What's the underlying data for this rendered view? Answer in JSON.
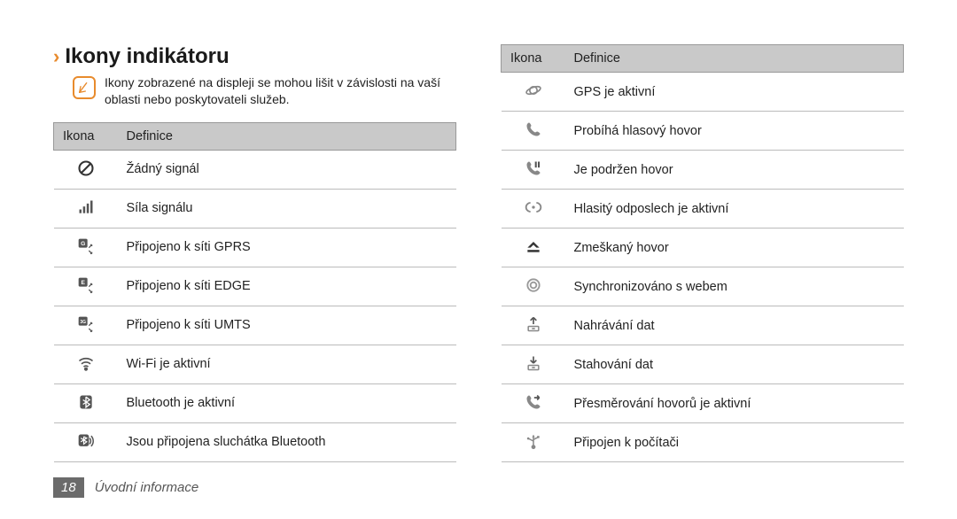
{
  "heading": "Ikony indikátoru",
  "noteText": "Ikony zobrazené na displeji se mohou lišit v závislosti na vaší oblasti nebo poskytovateli služeb.",
  "tableHeaders": {
    "icon": "Ikona",
    "def": "Definice"
  },
  "leftRows": [
    {
      "icon": "no-signal-icon",
      "label": "Žádný signál"
    },
    {
      "icon": "signal-icon",
      "label": "Síla signálu"
    },
    {
      "icon": "gprs-icon",
      "label": "Připojeno k síti GPRS"
    },
    {
      "icon": "edge-icon",
      "label": "Připojeno k síti EDGE"
    },
    {
      "icon": "umts-icon",
      "label": "Připojeno k síti UMTS"
    },
    {
      "icon": "wifi-icon",
      "label": "Wi-Fi je aktivní"
    },
    {
      "icon": "bluetooth-icon",
      "label": "Bluetooth je aktivní"
    },
    {
      "icon": "bt-headset-icon",
      "label": "Jsou připojena sluchátka Bluetooth"
    }
  ],
  "rightRows": [
    {
      "icon": "gps-icon",
      "label": "GPS je aktivní"
    },
    {
      "icon": "call-icon",
      "label": "Probíhá hlasový hovor"
    },
    {
      "icon": "call-hold-icon",
      "label": "Je podržen hovor"
    },
    {
      "icon": "speaker-icon",
      "label": "Hlasitý odposlech je aktivní"
    },
    {
      "icon": "missed-call-icon",
      "label": "Zmeškaný hovor"
    },
    {
      "icon": "sync-icon",
      "label": "Synchronizováno s webem"
    },
    {
      "icon": "upload-icon",
      "label": "Nahrávání dat"
    },
    {
      "icon": "download-icon",
      "label": "Stahování dat"
    },
    {
      "icon": "call-fwd-icon",
      "label": "Přesměrování hovorů je aktivní"
    },
    {
      "icon": "usb-icon",
      "label": "Připojen k počítači"
    }
  ],
  "footer": {
    "page": "18",
    "section": "Úvodní informace"
  },
  "colors": {
    "accent": "#e88b2d",
    "headerBg": "#c9c9c9",
    "border": "#bbb",
    "text": "#222",
    "footerBg": "#6b6b6b"
  }
}
